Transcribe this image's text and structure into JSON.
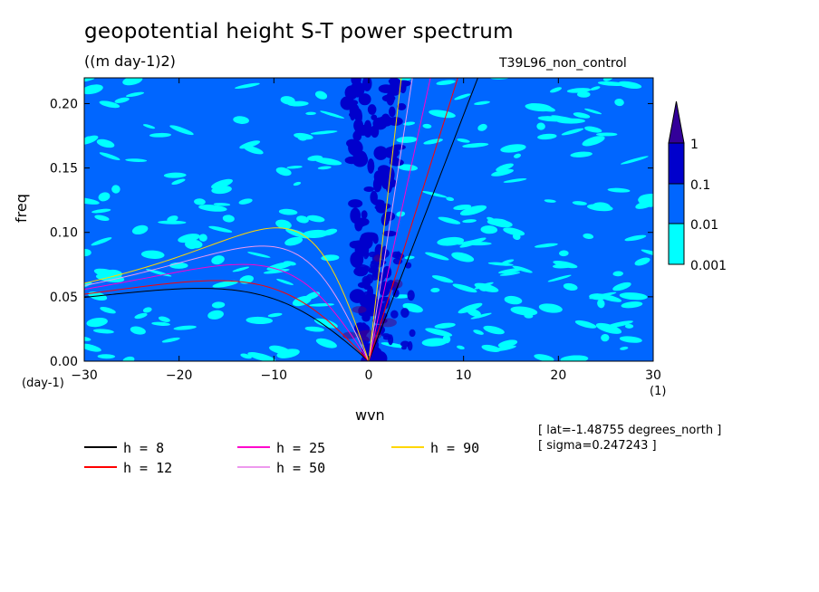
{
  "chart_data": {
    "type": "heatmap",
    "title": "geopotential height S-T power spectrum",
    "units": "((m day-1)2)",
    "run": "T39L96_non_control",
    "xlabel": "wvn",
    "ylabel": "freq",
    "x_unit": "(1)",
    "y_unit": "(day-1)",
    "xlim": [
      -30,
      30
    ],
    "ylim": [
      0,
      0.22
    ],
    "x_ticks": [
      "−30",
      "−20",
      "−10",
      "0",
      "10",
      "20",
      "30"
    ],
    "y_ticks": [
      "0.00",
      "0.05",
      "0.10",
      "0.15",
      "0.20"
    ],
    "colorbar": {
      "levels": [
        "0.001",
        "0.01",
        "0.1",
        "1"
      ],
      "colors": [
        "#00ffff",
        "#0066ff",
        "#0000cc",
        "#330099"
      ]
    },
    "fill_colors": {
      "background": "#0066ff",
      "low": "#00ffff",
      "mid": "#0000cc",
      "high": "#4b0082"
    },
    "dispersion_curves": [
      {
        "name": "h =  8",
        "h": 8,
        "color": "#000000"
      },
      {
        "name": "h = 12",
        "h": 12,
        "color": "#ff0000"
      },
      {
        "name": "h = 25",
        "h": 25,
        "color": "#ff00cc"
      },
      {
        "name": "h = 50",
        "h": 50,
        "color": "#ee99ee"
      },
      {
        "name": "h = 90",
        "h": 90,
        "color": "#ffd700"
      }
    ]
  },
  "info": {
    "lat": "[ lat=-1.48755 degrees_north ]",
    "sigma": "[ sigma=0.247243 ]"
  }
}
